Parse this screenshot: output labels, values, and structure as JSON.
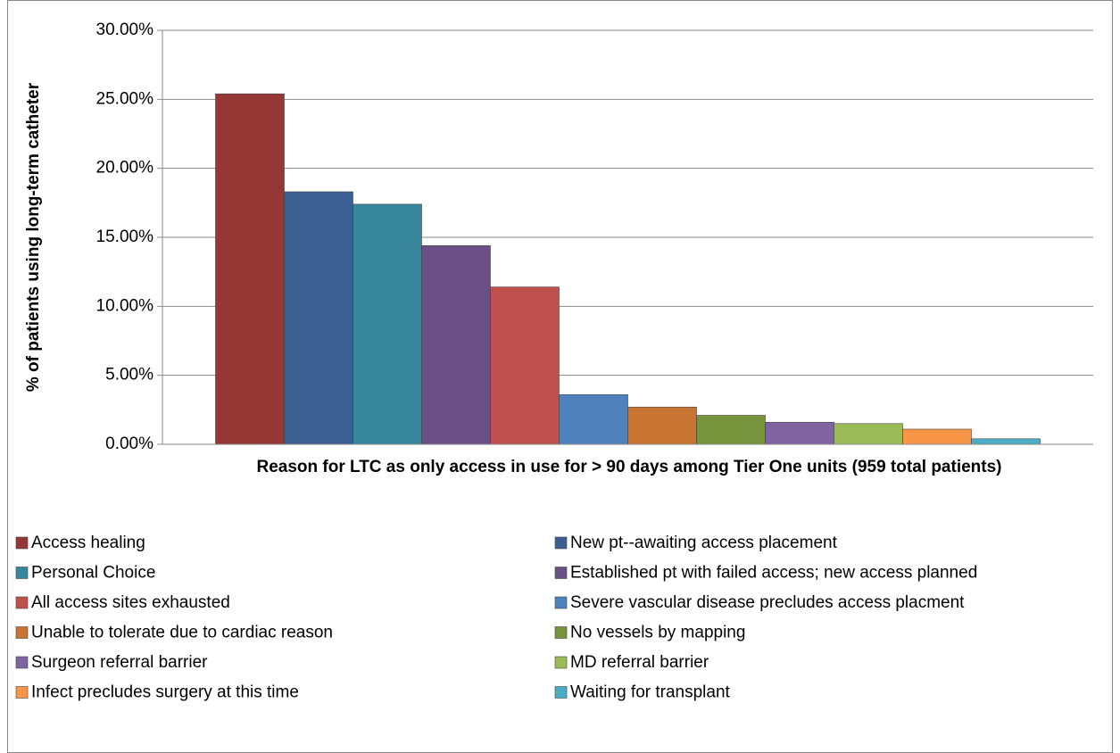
{
  "chart_data": {
    "type": "bar",
    "y_label": "% of patients using long-term catheter",
    "x_label": "Reason for LTC as only access in use for > 90 days among Tier One units (959 total patients)",
    "ylim": [
      0,
      30
    ],
    "yticks": [
      {
        "value": 0,
        "label": "0.00%"
      },
      {
        "value": 5,
        "label": "5.00%"
      },
      {
        "value": 10,
        "label": "10.00%"
      },
      {
        "value": 15,
        "label": "15.00%"
      },
      {
        "value": 20,
        "label": "20.00%"
      },
      {
        "value": 25,
        "label": "25.00%"
      },
      {
        "value": 30,
        "label": "30.00%"
      }
    ],
    "grid": true,
    "legend": "bottom",
    "series": [
      {
        "name": "Access healing",
        "color": "#953735",
        "values": [
          25.4
        ]
      },
      {
        "name": "New pt--awaiting access placement",
        "color": "#3c5f92",
        "values": [
          18.3
        ]
      },
      {
        "name": "Personal Choice",
        "color": "#37869c",
        "values": [
          17.4
        ]
      },
      {
        "name": "Established pt with failed access; new access planned",
        "color": "#6a5084",
        "values": [
          14.4
        ]
      },
      {
        "name": "All access sites exhausted",
        "color": "#c0504d",
        "values": [
          11.4
        ]
      },
      {
        "name": "Severe vascular disease precludes access placment",
        "color": "#4f81bd",
        "values": [
          3.6
        ]
      },
      {
        "name": "Unable to tolerate due to cardiac reason",
        "color": "#c87432",
        "values": [
          2.7
        ]
      },
      {
        "name": "No vessels by mapping",
        "color": "#77933c",
        "values": [
          2.1
        ]
      },
      {
        "name": "Surgeon referral barrier",
        "color": "#8064a2",
        "values": [
          1.6
        ]
      },
      {
        "name": "MD referral barrier",
        "color": "#9bbb59",
        "values": [
          1.5
        ]
      },
      {
        "name": "Infect precludes surgery at this time",
        "color": "#f79646",
        "values": [
          1.1
        ]
      },
      {
        "name": "Waiting for transplant",
        "color": "#4bacc6",
        "values": [
          0.4
        ]
      }
    ]
  }
}
